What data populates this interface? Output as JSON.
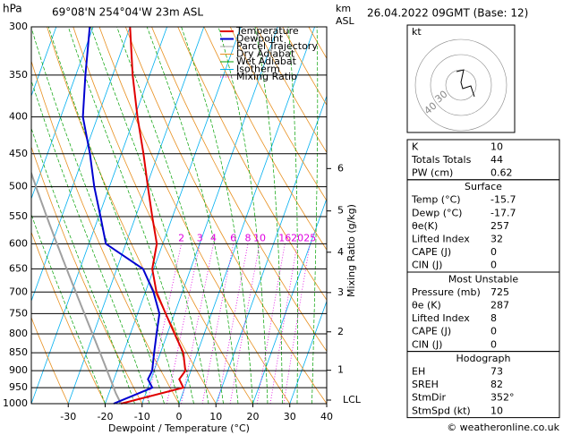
{
  "header": {
    "pressure_unit": "hPa",
    "location": "69°08'N 254°04'W 23m ASL",
    "km": "km",
    "asl": "ASL",
    "date": "26.04.2022 09GMT (Base: 12)"
  },
  "chart_data": {
    "type": "skewt",
    "xlabel": "Dewpoint / Temperature (°C)",
    "y2label": "Mixing Ratio (g/kg)",
    "levels": [
      1000,
      950,
      925,
      900,
      850,
      800,
      750,
      700,
      650,
      600,
      550,
      500,
      450,
      400,
      350,
      300
    ],
    "series": [
      {
        "name": "Temperature",
        "color": "#e00000",
        "values": [
          -15.7,
          -0.4,
          -2.3,
          -1.5,
          -3.8,
          -8.0,
          -12.4,
          -17.0,
          -20.4,
          -21.6,
          -25.5,
          -29.6,
          -34.0,
          -39.2,
          -44.6,
          -50.0
        ]
      },
      {
        "name": "Dewpoint",
        "color": "#0000d0",
        "values": [
          -17.7,
          -8.8,
          -10.8,
          -10.5,
          -11.7,
          -12.9,
          -14.1,
          -17.8,
          -22.9,
          -35.4,
          -39.5,
          -44.1,
          -48.5,
          -54.0,
          -57.4,
          -60.9
        ]
      }
    ],
    "legend_extra": [
      {
        "name": "Parcel Trajectory",
        "color": "#a0a0a0"
      },
      {
        "name": "Dry Adiabat",
        "color": "#e89020"
      },
      {
        "name": "Wet Adiabat",
        "color": "#00a000"
      },
      {
        "name": "Isotherm",
        "color": "#00b0f0"
      },
      {
        "name": "Mixing Ratio",
        "color": "#e000e0"
      }
    ],
    "xlim": [
      -40,
      40
    ],
    "xticks": [
      -30,
      -20,
      -10,
      0,
      10,
      20,
      30,
      40
    ],
    "ylim": [
      1000,
      300
    ],
    "yticks": [
      300,
      350,
      400,
      450,
      500,
      550,
      600,
      650,
      700,
      750,
      800,
      850,
      900,
      950,
      1000
    ],
    "ylog": true,
    "grid": true,
    "km_ticks": [
      1,
      2,
      3,
      4,
      5,
      6
    ],
    "lcl": "LCL",
    "mixing_ratios": [
      2,
      3,
      4,
      6,
      8,
      10,
      16,
      20,
      25
    ]
  },
  "hodograph": {
    "unit": "kt",
    "rings": [
      "40",
      "30"
    ]
  },
  "table": {
    "sections": [
      {
        "rows": [
          [
            "K",
            "10"
          ],
          [
            "Totals Totals",
            "44"
          ],
          [
            "PW (cm)",
            "0.62"
          ]
        ]
      },
      {
        "title": "Surface",
        "rows": [
          [
            "Temp (°C)",
            "-15.7"
          ],
          [
            "Dewp (°C)",
            "-17.7"
          ],
          [
            "θe(K)",
            "257"
          ],
          [
            "Lifted Index",
            "32"
          ],
          [
            "CAPE (J)",
            "0"
          ],
          [
            "CIN (J)",
            "0"
          ]
        ]
      },
      {
        "title": "Most Unstable",
        "rows": [
          [
            "Pressure (mb)",
            "725"
          ],
          [
            "θe (K)",
            "287"
          ],
          [
            "Lifted Index",
            "8"
          ],
          [
            "CAPE (J)",
            "0"
          ],
          [
            "CIN (J)",
            "0"
          ]
        ]
      },
      {
        "title": "Hodograph",
        "rows": [
          [
            "EH",
            "73"
          ],
          [
            "SREH",
            "82"
          ],
          [
            "StmDir",
            "352°"
          ],
          [
            "StmSpd (kt)",
            "10"
          ]
        ]
      }
    ]
  },
  "footer": "© weatheronline.co.uk"
}
